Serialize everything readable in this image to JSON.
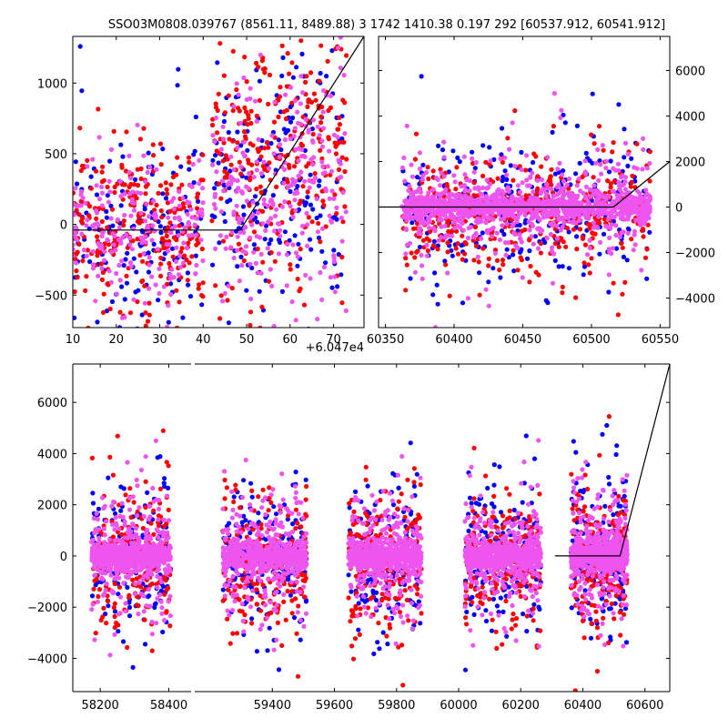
{
  "title": "SSO03M0808.039767 (8561.11, 8489.88)   3 1742 1410.38 0.197 292 [60537.912, 60541.912]",
  "colors": {
    "red": "#ff0000",
    "blue": "#0000ff",
    "violet": "#ee55ee",
    "line": "#000000"
  },
  "chart_data": [
    {
      "type": "scatter",
      "panel": "top-left (zoom)",
      "x_offset_label": "+6.047e4",
      "xlim": [
        10,
        77
      ],
      "ylim": [
        -730,
        1330
      ],
      "xticks": [
        10,
        20,
        30,
        40,
        50,
        60,
        70
      ],
      "xtick_labels": [
        "10",
        "20",
        "30",
        "40",
        "50",
        "60",
        "70"
      ],
      "yticks": [
        -500,
        0,
        500,
        1000
      ],
      "ytick_labels": [
        "−500",
        "0",
        "500",
        "1000"
      ],
      "model_line": {
        "x": [
          10,
          48.5,
          77
        ],
        "y": [
          -40,
          -40,
          1330
        ]
      },
      "point_groups": [
        {
          "name": "",
          "color": "#0000ff",
          "clusters": [
            {
              "x": [
                10,
                40
              ],
              "y_center": -60,
              "y_spread": 420,
              "count": 160
            },
            {
              "x": [
                42,
                72
              ],
              "y_center": 150,
              "y_spread": 480,
              "count": 190
            }
          ]
        },
        {
          "name": "",
          "color": "#ff0000",
          "clusters": [
            {
              "x": [
                10,
                40
              ],
              "y_center": -40,
              "y_spread": 320,
              "count": 280
            },
            {
              "x": [
                42,
                73
              ],
              "y_center": 350,
              "y_spread": 420,
              "count": 290
            }
          ]
        },
        {
          "name": "",
          "color": "#ee55ee",
          "clusters": [
            {
              "x": [
                10,
                40
              ],
              "y_center": -20,
              "y_spread": 260,
              "count": 210
            },
            {
              "x": [
                42,
                73
              ],
              "y_center": 150,
              "y_spread": 380,
              "count": 260
            }
          ]
        }
      ]
    },
    {
      "type": "scatter",
      "panel": "top-right",
      "xlim": [
        60345,
        60557
      ],
      "ylim": [
        -5300,
        7500
      ],
      "xticks": [
        60350,
        60400,
        60450,
        60500,
        60550
      ],
      "xtick_labels": [
        "60350",
        "60400",
        "60450",
        "60500",
        "60550"
      ],
      "yticks": [
        -4000,
        -2000,
        0,
        2000,
        4000,
        6000
      ],
      "ytick_labels": [
        "−4000",
        "−2000",
        "0",
        "2000",
        "4000",
        "6000"
      ],
      "model_line": {
        "x": [
          60345,
          60516,
          60557
        ],
        "y": [
          0,
          0,
          2000
        ]
      },
      "point_groups": [
        {
          "name": "",
          "color": "#0000ff",
          "clusters": [
            {
              "x": [
                60362,
                60543
              ],
              "y_center": 0,
              "y_spread": 1500,
              "count": 320
            }
          ]
        },
        {
          "name": "",
          "color": "#ff0000",
          "clusters": [
            {
              "x": [
                60362,
                60543
              ],
              "y_center": -200,
              "y_spread": 1400,
              "count": 380
            }
          ]
        },
        {
          "name": "",
          "color": "#ee55ee",
          "clusters": [
            {
              "x": [
                60362,
                60543
              ],
              "y_center": 0,
              "y_spread": 1300,
              "count": 420
            },
            {
              "x": [
                60362,
                60543
              ],
              "y_center": 0,
              "y_spread": 300,
              "count": 900
            }
          ]
        }
      ]
    },
    {
      "type": "scatter",
      "panel": "bottom (broken x-axis)",
      "ylim": [
        -5300,
        7500
      ],
      "yticks": [
        -4000,
        -2000,
        0,
        2000,
        4000,
        6000
      ],
      "ytick_labels": [
        "−4000",
        "−2000",
        "0",
        "2000",
        "4000",
        "6000"
      ],
      "segments": [
        {
          "xlim": [
            58120,
            58465
          ],
          "xticks": [
            58200,
            58400
          ],
          "xtick_labels": [
            "58200",
            "58400"
          ]
        },
        {
          "xlim": [
            59150,
            60680
          ],
          "xticks": [
            59400,
            59600,
            59800,
            60000,
            60200,
            60400,
            60600
          ],
          "xtick_labels": [
            "59400",
            "59600",
            "59800",
            "60000",
            "60200",
            "60400",
            "60600"
          ]
        }
      ],
      "model_line": {
        "x": [
          60310,
          60520,
          60680
        ],
        "y": [
          0,
          0,
          7500
        ]
      },
      "seasons": [
        {
          "x": [
            58175,
            58405
          ]
        },
        {
          "x": [
            59240,
            59510
          ]
        },
        {
          "x": [
            59645,
            59880
          ]
        },
        {
          "x": [
            60020,
            60265
          ]
        },
        {
          "x": [
            60362,
            60543
          ]
        }
      ],
      "point_groups": [
        {
          "name": "",
          "color": "#0000ff",
          "y_center": 0,
          "y_spread": 1500,
          "count_per_season": 170
        },
        {
          "name": "",
          "color": "#ff0000",
          "y_center": -200,
          "y_spread": 1400,
          "count_per_season": 200
        },
        {
          "name": "",
          "color": "#ee55ee",
          "y_center": 0,
          "y_spread": 1300,
          "count_per_season": 220
        },
        {
          "name": "",
          "color": "#ee55ee",
          "y_center": 0,
          "y_spread": 300,
          "count_per_season": 500
        }
      ]
    }
  ]
}
